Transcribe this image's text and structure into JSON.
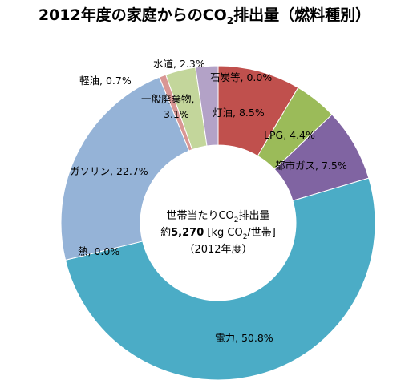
{
  "title": {
    "prefix": "2012年度の家庭からのCO",
    "sub": "2",
    "suffix": "排出量（燃料種別）"
  },
  "center": {
    "line1_prefix": "世帯当たりCO",
    "line1_sub": "2",
    "line1_suffix": "排出量",
    "line2_prefix": "約",
    "line2_value": "5,270",
    "line2_unit_prefix": " [kg CO",
    "line2_unit_sub": "2",
    "line2_unit_suffix": "/世帯]",
    "line3": "（2012年度）"
  },
  "chart_data": {
    "type": "pie",
    "donut": true,
    "unit": "%",
    "slices": [
      {
        "name": "石炭等",
        "value": 0.0,
        "label": "石炭等, 0.0%",
        "color": "#c0504d"
      },
      {
        "name": "灯油",
        "value": 8.5,
        "label": "灯油, 8.5%",
        "color": "#c0504d"
      },
      {
        "name": "LPG",
        "value": 4.4,
        "label": "LPG, 4.4%",
        "color": "#9bbb59"
      },
      {
        "name": "都市ガス",
        "value": 7.5,
        "label": "都市ガス, 7.5%",
        "color": "#8064a2"
      },
      {
        "name": "電力",
        "value": 50.8,
        "label": "電力, 50.8%",
        "color": "#4bacc6"
      },
      {
        "name": "熱",
        "value": 0.0,
        "label": "熱, 0.0%",
        "color": "#4bacc6"
      },
      {
        "name": "ガソリン",
        "value": 22.7,
        "label": "ガソリン, 22.7%",
        "color": "#95b3d7"
      },
      {
        "name": "軽油",
        "value": 0.7,
        "label": "軽油, 0.7%",
        "color": "#d99694"
      },
      {
        "name": "一般廃棄物",
        "value": 3.1,
        "label_line1": "一般廃棄物,",
        "label_line2": "3.1%",
        "color": "#c3d69b"
      },
      {
        "name": "水道",
        "value": 2.3,
        "label": "水道, 2.3%",
        "color": "#b3a2c7"
      }
    ]
  }
}
